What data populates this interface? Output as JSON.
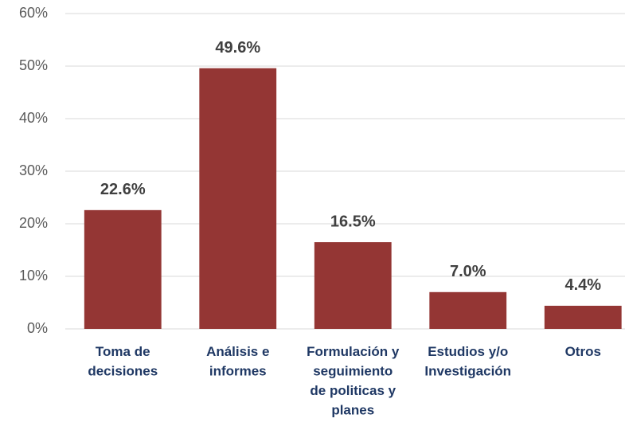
{
  "chart_data": {
    "type": "bar",
    "categories": [
      [
        "Toma de",
        "decisiones"
      ],
      [
        "Análisis e",
        "informes"
      ],
      [
        "Formulación y",
        "seguimiento",
        "de politicas y",
        "planes"
      ],
      [
        "Estudios y/o",
        "Investigación"
      ],
      [
        "Otros"
      ]
    ],
    "values": [
      22.6,
      49.6,
      16.5,
      7.0,
      4.4
    ],
    "value_labels": [
      "22.6%",
      "49.6%",
      "16.5%",
      "7.0%",
      "4.4%"
    ],
    "color": "#943634",
    "ylim": [
      0,
      60
    ],
    "yticks": [
      {
        "value": 0,
        "label": "0%"
      },
      {
        "value": 10,
        "label": "10%"
      },
      {
        "value": 20,
        "label": "20%"
      },
      {
        "value": 30,
        "label": "30%"
      },
      {
        "value": 40,
        "label": "40%"
      },
      {
        "value": 50,
        "label": "50%"
      },
      {
        "value": 60,
        "label": "60%"
      }
    ],
    "grid": true
  }
}
